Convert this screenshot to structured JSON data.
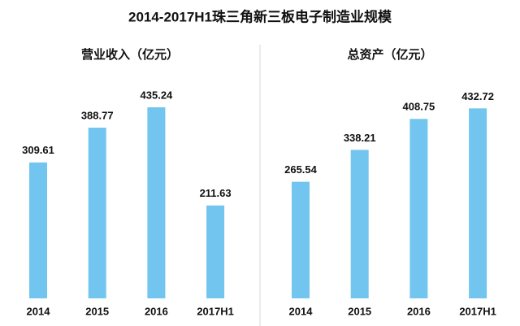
{
  "title": "2014-2017H1珠三角新三板电子制造业规模",
  "chart_data": [
    {
      "type": "bar",
      "title": "营业收入（亿元）",
      "categories": [
        "2014",
        "2015",
        "2016",
        "2017H1"
      ],
      "values": [
        309.61,
        388.77,
        435.24,
        211.63
      ],
      "color": "#72c5ee"
    },
    {
      "type": "bar",
      "title": "总资产（亿元）",
      "categories": [
        "2014",
        "2015",
        "2016",
        "2017H1"
      ],
      "values": [
        265.54,
        338.21,
        408.75,
        432.72
      ],
      "color": "#72c5ee"
    }
  ]
}
